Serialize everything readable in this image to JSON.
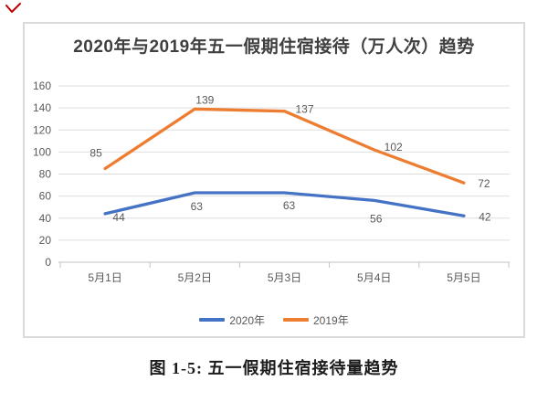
{
  "annotation_mark": {
    "name": "red-check-mark",
    "color": "#c00000"
  },
  "chart_data": {
    "type": "line",
    "title": "2020年与2019年五一假期住宿接待（万人次）趋势",
    "categories": [
      "5月1日",
      "5月2日",
      "5月3日",
      "5月4日",
      "5月5日"
    ],
    "series": [
      {
        "name": "2020年",
        "color": "#4472C4",
        "values": [
          44,
          63,
          63,
          56,
          42
        ]
      },
      {
        "name": "2019年",
        "color": "#ED7D31",
        "values": [
          85,
          139,
          137,
          102,
          72
        ]
      }
    ],
    "ylim": [
      0,
      160
    ],
    "yticks": [
      0,
      20,
      40,
      60,
      80,
      100,
      120,
      140,
      160
    ],
    "xlabel": "",
    "ylabel": "",
    "grid": true,
    "data_labels": true,
    "legend_position": "bottom"
  },
  "caption": "图 1-5: 五一假期住宿接待量趋势"
}
